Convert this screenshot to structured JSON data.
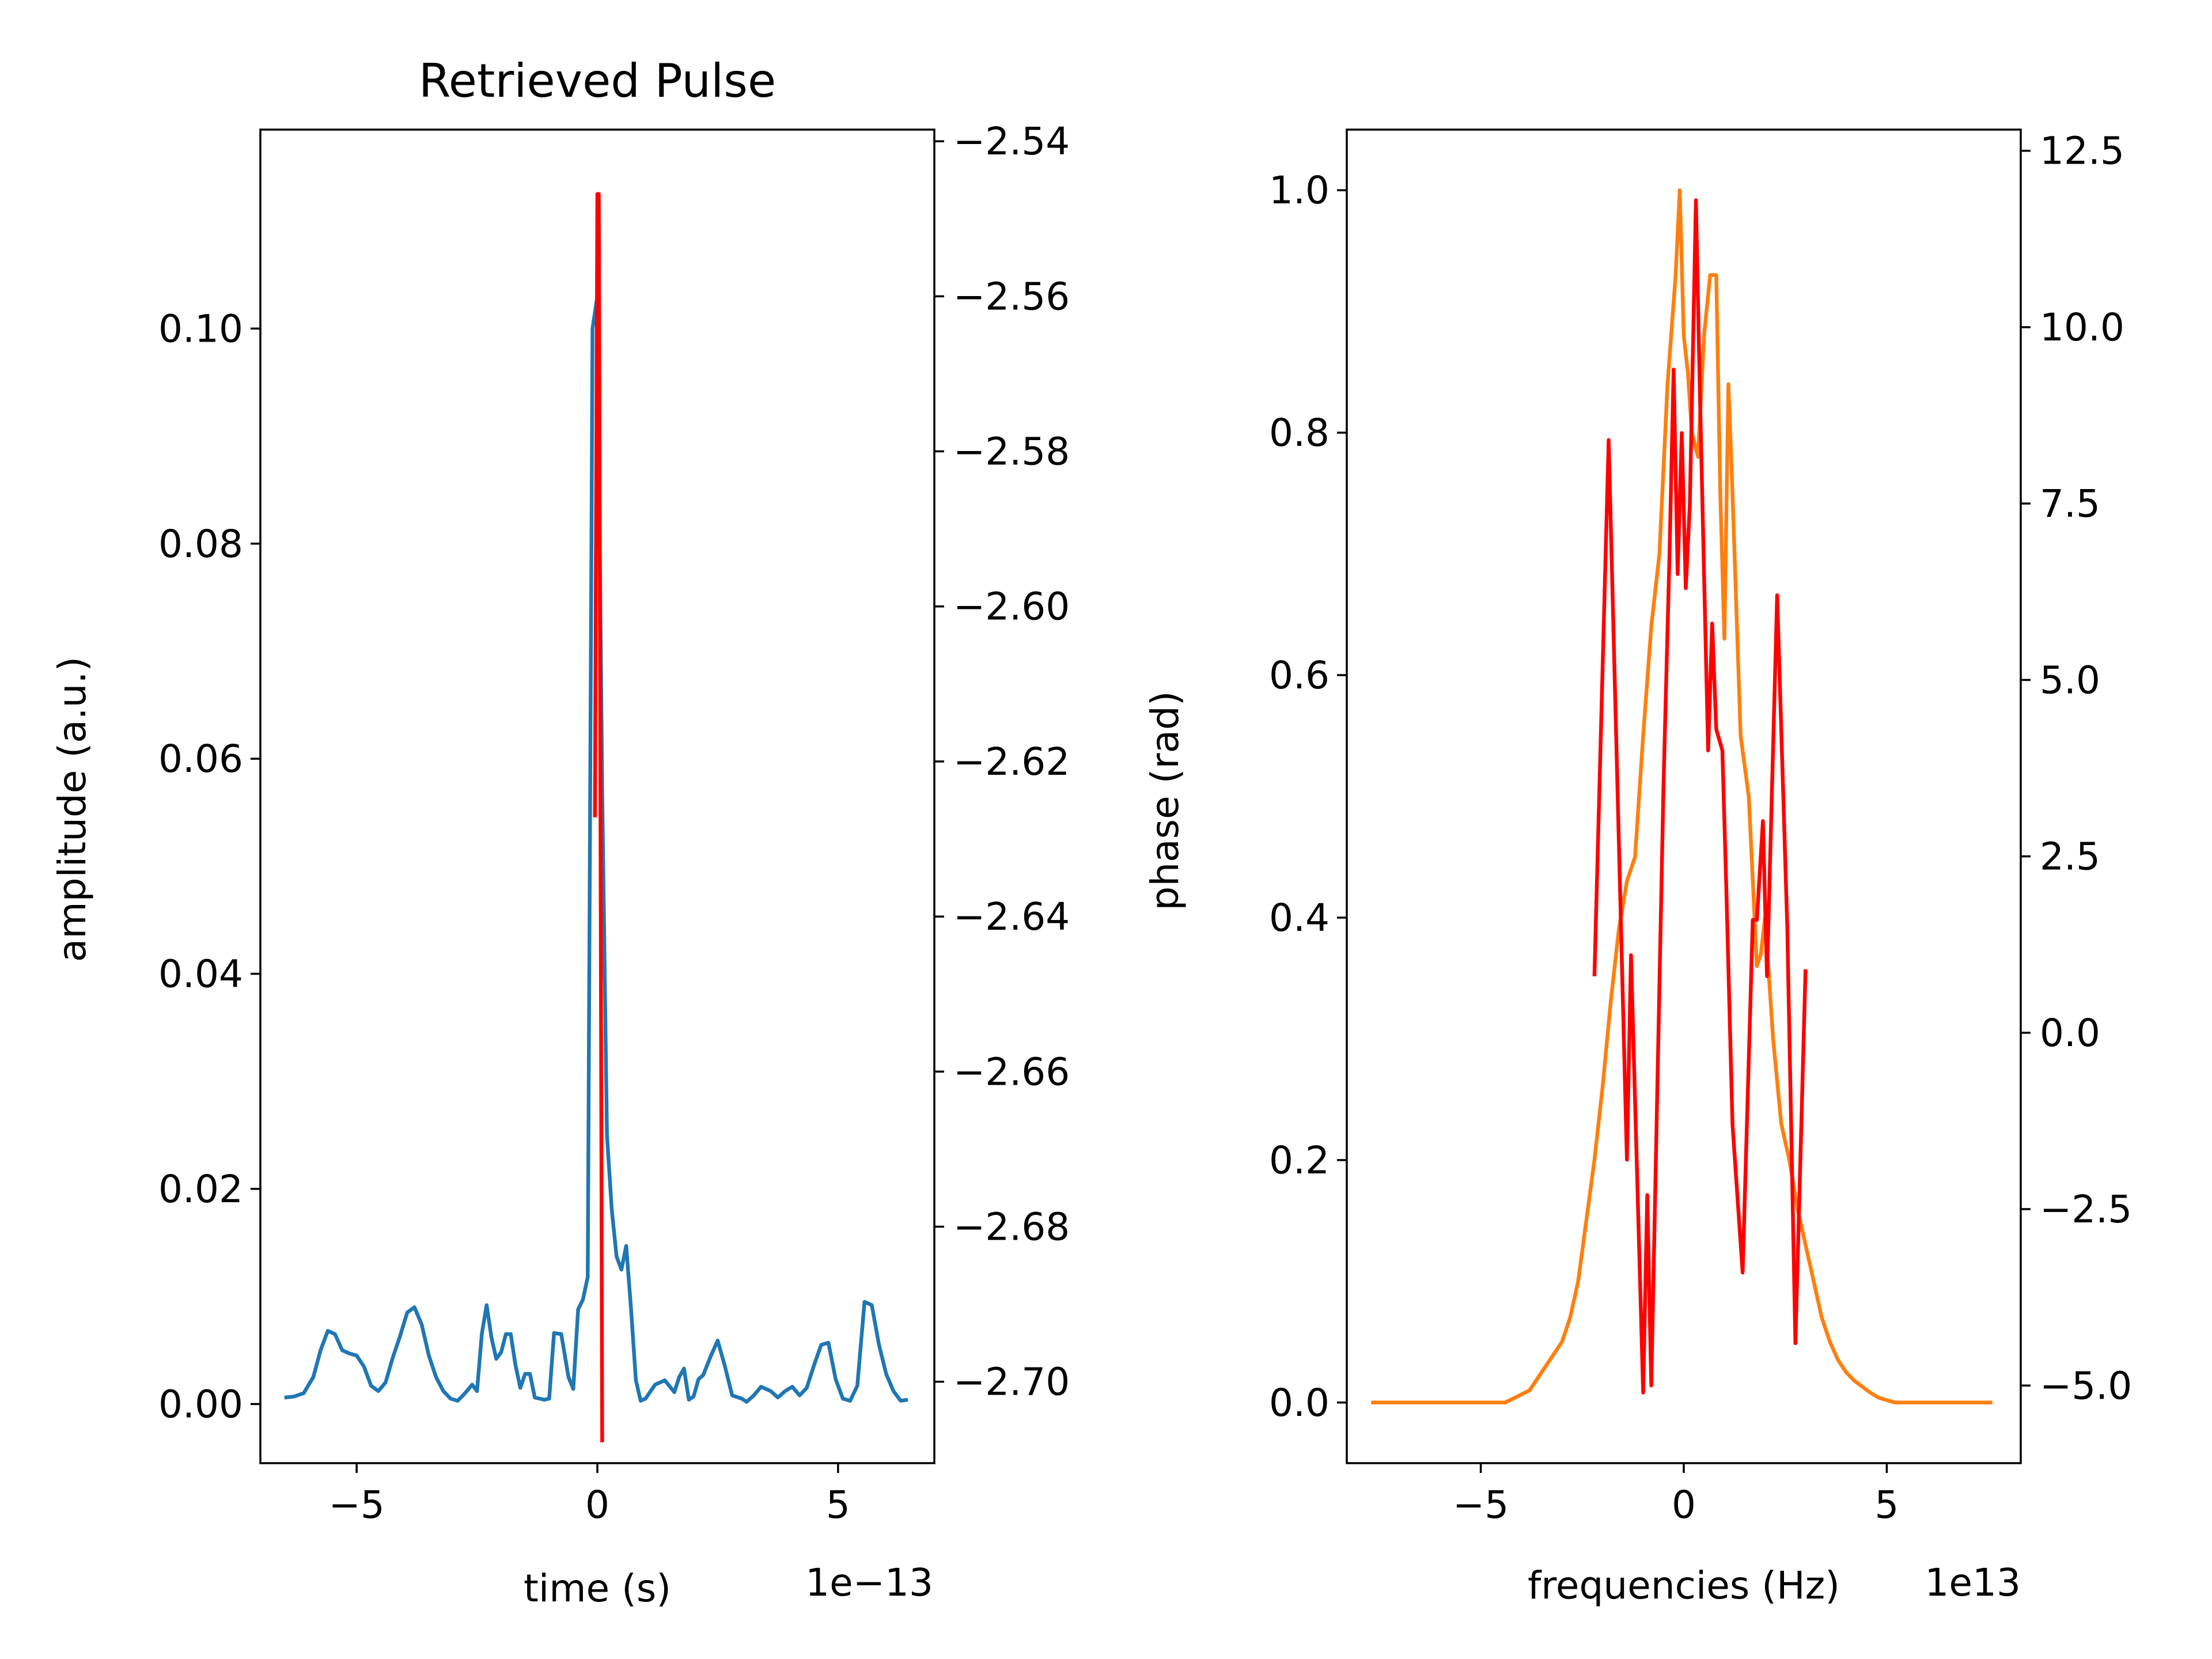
{
  "chart_data": [
    {
      "type": "line",
      "title": "Retrieved Pulse",
      "xlabel": "time (s)",
      "x_offset_label": "1e−13",
      "ylabel": "amplitude (a.u.)",
      "y2label": "phase (rad)",
      "xlim": [
        -7.0,
        7.0
      ],
      "ylim": [
        -0.0055,
        0.1185
      ],
      "y2lim": [
        -2.7105,
        -2.5385
      ],
      "x_ticks": [
        -5,
        0,
        5
      ],
      "x_tick_labels": [
        "−5",
        "0",
        "5"
      ],
      "y_ticks": [
        0.0,
        0.02,
        0.04,
        0.06,
        0.08,
        0.1
      ],
      "y_tick_labels": [
        "0.00",
        "0.02",
        "0.04",
        "0.06",
        "0.08",
        "0.10"
      ],
      "y2_ticks": [
        -2.7,
        -2.68,
        -2.66,
        -2.64,
        -2.62,
        -2.6,
        -2.58,
        -2.56,
        -2.54
      ],
      "y2_tick_labels": [
        "−2.70",
        "−2.68",
        "−2.66",
        "−2.64",
        "−2.62",
        "−2.60",
        "−2.58",
        "−2.56",
        "−2.54"
      ],
      "series": [
        {
          "color": "#1f77b4",
          "axis": "left",
          "x": [
            -6.5,
            -6.3,
            -6.1,
            -5.9,
            -5.75,
            -5.6,
            -5.45,
            -5.3,
            -5.15,
            -5.0,
            -4.85,
            -4.7,
            -4.55,
            -4.4,
            -4.25,
            -4.1,
            -3.95,
            -3.8,
            -3.65,
            -3.5,
            -3.35,
            -3.2,
            -3.05,
            -2.9,
            -2.75,
            -2.6,
            -2.5,
            -2.4,
            -2.3,
            -2.2,
            -2.1,
            -2.0,
            -1.9,
            -1.8,
            -1.7,
            -1.6,
            -1.5,
            -1.4,
            -1.3,
            -1.2,
            -1.1,
            -1.0,
            -0.9,
            -0.75,
            -0.6,
            -0.5,
            -0.4,
            -0.3,
            -0.2,
            -0.1,
            0.0,
            0.1,
            0.2,
            0.3,
            0.4,
            0.5,
            0.6,
            0.7,
            0.8,
            0.9,
            1.0,
            1.2,
            1.4,
            1.6,
            1.7,
            1.8,
            1.9,
            2.0,
            2.1,
            2.2,
            2.35,
            2.5,
            2.65,
            2.8,
            3.0,
            3.1,
            3.25,
            3.4,
            3.6,
            3.75,
            3.9,
            4.05,
            4.2,
            4.35,
            4.5,
            4.65,
            4.8,
            4.95,
            5.1,
            5.25,
            5.4,
            5.55,
            5.7,
            5.85,
            6.0,
            6.15,
            6.3,
            6.45
          ],
          "values": [
            0.0006,
            0.0007,
            0.001,
            0.0025,
            0.005,
            0.0068,
            0.0065,
            0.005,
            0.0047,
            0.0045,
            0.0035,
            0.0017,
            0.0012,
            0.002,
            0.0043,
            0.0063,
            0.0085,
            0.009,
            0.0074,
            0.0045,
            0.0025,
            0.0012,
            0.0005,
            0.0003,
            0.001,
            0.0018,
            0.0012,
            0.0065,
            0.0092,
            0.0062,
            0.0042,
            0.0048,
            0.0065,
            0.0065,
            0.0036,
            0.0015,
            0.0028,
            0.0028,
            0.0006,
            0.0005,
            0.0004,
            0.0005,
            0.0066,
            0.0065,
            0.0025,
            0.0014,
            0.0088,
            0.0097,
            0.0118,
            0.1,
            0.103,
            0.057,
            0.025,
            0.018,
            0.0137,
            0.0125,
            0.0147,
            0.0088,
            0.0022,
            0.0003,
            0.0005,
            0.0018,
            0.0022,
            0.0011,
            0.0025,
            0.0033,
            0.0004,
            0.0007,
            0.0023,
            0.0027,
            0.0044,
            0.0059,
            0.0035,
            0.0008,
            0.0005,
            0.0002,
            0.0008,
            0.0016,
            0.0012,
            0.0006,
            0.0012,
            0.0016,
            0.0008,
            0.0015,
            0.0036,
            0.0055,
            0.0057,
            0.0023,
            0.0005,
            0.0003,
            0.0017,
            0.0095,
            0.0092,
            0.0055,
            0.0028,
            0.0012,
            0.0003,
            0.0004
          ]
        },
        {
          "color": "#ff0000",
          "axis": "right",
          "x": [
            -0.05,
            0.0,
            0.03,
            0.1
          ],
          "values": [
            -2.6272,
            -2.5468,
            -2.5468,
            -2.7078
          ]
        }
      ]
    },
    {
      "type": "line",
      "title": "",
      "xlabel": "frequencies (Hz)",
      "x_offset_label": "1e13",
      "ylabel": "",
      "y2label": "",
      "xlim": [
        -8.3,
        8.3
      ],
      "ylim": [
        -0.05,
        1.05
      ],
      "y2lim": [
        -6.1,
        12.8
      ],
      "x_ticks": [
        -5,
        0,
        5
      ],
      "x_tick_labels": [
        "−5",
        "0",
        "5"
      ],
      "y_ticks": [
        0.0,
        0.2,
        0.4,
        0.6,
        0.8,
        1.0
      ],
      "y_tick_labels": [
        "0.0",
        "0.2",
        "0.4",
        "0.6",
        "0.8",
        "1.0"
      ],
      "y2_ticks": [
        -5.0,
        -2.5,
        0.0,
        2.5,
        5.0,
        7.5,
        10.0,
        12.5
      ],
      "y2_tick_labels": [
        "−5.0",
        "−2.5",
        "0.0",
        "2.5",
        "5.0",
        "7.5",
        "10.0",
        "12.5"
      ],
      "series": [
        {
          "color": "#ff7f0e",
          "axis": "left",
          "x": [
            -7.7,
            -4.4,
            -4.1,
            -3.8,
            -3.6,
            -3.4,
            -3.2,
            -3.0,
            -2.8,
            -2.6,
            -2.4,
            -2.2,
            -2.0,
            -1.8,
            -1.6,
            -1.4,
            -1.2,
            -1.0,
            -0.8,
            -0.6,
            -0.4,
            -0.2,
            -0.1,
            0.0,
            0.1,
            0.2,
            0.35,
            0.5,
            0.65,
            0.8,
            0.9,
            1.0,
            1.1,
            1.2,
            1.4,
            1.6,
            1.8,
            1.9,
            2.0,
            2.2,
            2.4,
            2.6,
            2.8,
            3.0,
            3.2,
            3.4,
            3.6,
            3.8,
            4.0,
            4.2,
            4.4,
            4.6,
            4.8,
            5.0,
            5.2,
            5.4,
            5.6,
            7.6
          ],
          "values": [
            0.0,
            0.0,
            0.005,
            0.01,
            0.02,
            0.03,
            0.04,
            0.05,
            0.07,
            0.1,
            0.15,
            0.2,
            0.26,
            0.33,
            0.39,
            0.43,
            0.45,
            0.55,
            0.64,
            0.7,
            0.84,
            0.93,
            1.0,
            0.88,
            0.85,
            0.8,
            0.78,
            0.88,
            0.93,
            0.93,
            0.75,
            0.63,
            0.84,
            0.75,
            0.55,
            0.5,
            0.36,
            0.37,
            0.4,
            0.3,
            0.23,
            0.2,
            0.16,
            0.13,
            0.1,
            0.07,
            0.05,
            0.035,
            0.025,
            0.018,
            0.013,
            0.008,
            0.004,
            0.002,
            0.0,
            0.0,
            0.0,
            0.0
          ]
        },
        {
          "color": "#ff0000",
          "axis": "right",
          "x": [
            -2.2,
            -1.85,
            -1.4,
            -1.3,
            -1.0,
            -0.9,
            -0.8,
            -0.5,
            -0.35,
            -0.25,
            -0.15,
            -0.05,
            0.05,
            0.15,
            0.3,
            0.4,
            0.5,
            0.6,
            0.7,
            0.8,
            0.95,
            1.05,
            1.2,
            1.45,
            1.7,
            1.8,
            1.95,
            2.05,
            2.3,
            2.55,
            2.75,
            3.0
          ],
          "values": [
            0.8,
            8.4,
            -1.8,
            1.1,
            -5.1,
            -2.3,
            -5.0,
            3.5,
            6.8,
            9.4,
            6.5,
            8.5,
            6.3,
            7.5,
            11.8,
            9.0,
            6.5,
            4.0,
            5.8,
            4.3,
            4.0,
            2.0,
            -1.3,
            -3.4,
            1.6,
            1.6,
            3.0,
            0.8,
            6.2,
            1.5,
            -4.4,
            0.9
          ]
        }
      ]
    }
  ]
}
